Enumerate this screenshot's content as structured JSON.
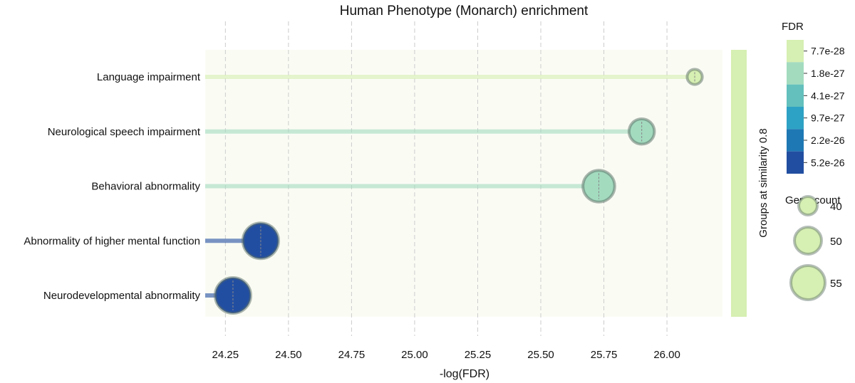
{
  "chart_data": {
    "type": "lollipop",
    "title": "Human Phenotype (Monarch) enrichment",
    "xlabel": "-log(FDR)",
    "xlim": [
      24.17,
      26.22
    ],
    "xticks": [
      24.25,
      24.5,
      24.75,
      25.0,
      25.25,
      25.5,
      25.75,
      26.0
    ],
    "xtick_labels": [
      "24.25",
      "24.50",
      "24.75",
      "25.00",
      "25.25",
      "25.50",
      "25.75",
      "26.00"
    ],
    "grid": "vertical dashed",
    "categories": [
      "Language impairment",
      "Neurological speech impairment",
      "Behavioral abnormality",
      "Abnormality of higher mental function",
      "Neurodevelopmental abnormality"
    ],
    "values": [
      26.11,
      25.9,
      25.73,
      24.39,
      24.28
    ],
    "gene_counts": [
      40,
      48,
      53,
      56,
      56
    ],
    "colors": [
      "#d6efb2",
      "#a3dbbf",
      "#a3dbbf",
      "#224ea1",
      "#224ea1"
    ],
    "group_label": "Groups at similarity 0.8",
    "group_color": "#d6efb2",
    "fdr_legend": {
      "title": "FDR",
      "labels": [
        "7.7e-28",
        "1.8e-27",
        "4.1e-27",
        "9.7e-27",
        "2.2e-26",
        "5.2e-26"
      ],
      "colors": [
        "#d6efb2",
        "#a3dbbf",
        "#63c0bc",
        "#2ea2c4",
        "#1e78b4",
        "#224ea1"
      ]
    },
    "size_legend": {
      "title": "Gene count",
      "labels": [
        "40",
        "50",
        "55"
      ],
      "values": [
        40,
        50,
        55
      ]
    }
  }
}
